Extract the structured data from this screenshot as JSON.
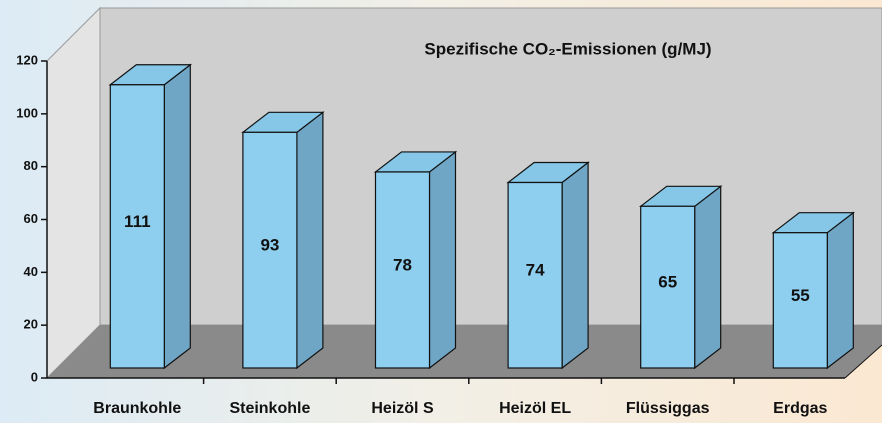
{
  "chart_data": {
    "type": "bar3d",
    "title": "Spezifische CO₂-Emissionen (g/MJ)",
    "categories": [
      "Braunkohle",
      "Steinkohle",
      "Heizöl S",
      "Heizöl EL",
      "Flüssiggas",
      "Erdgas"
    ],
    "values": [
      111,
      93,
      78,
      74,
      65,
      55
    ],
    "color": "#8ecff0",
    "side_color": "#6fa6c6",
    "top_color": "#86c6e6",
    "ylim": [
      0,
      120
    ],
    "yticks": [
      0,
      20,
      40,
      60,
      80,
      100,
      120
    ]
  }
}
